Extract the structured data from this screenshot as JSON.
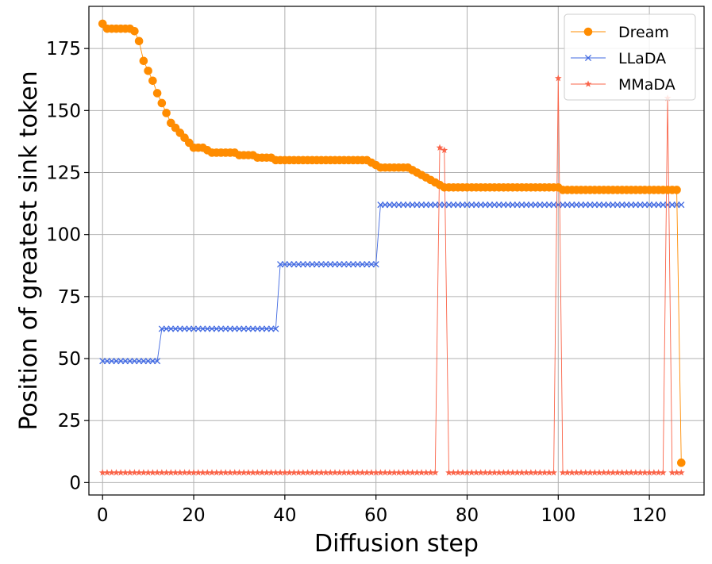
{
  "chart_data": {
    "type": "line",
    "title": "",
    "xlabel": "Diffusion step",
    "ylabel": "Position of greatest sink token",
    "xlim": [
      -3,
      132
    ],
    "ylim": [
      -5,
      192
    ],
    "xticks": [
      0,
      20,
      40,
      60,
      80,
      100,
      120
    ],
    "yticks": [
      0,
      25,
      50,
      75,
      100,
      125,
      150,
      175
    ],
    "grid": true,
    "legend_position": "top-right",
    "series": [
      {
        "name": "Dream",
        "color": "#ff8c00",
        "marker": "circle",
        "segments": [
          {
            "from": 0,
            "to": 0,
            "value": 185
          },
          {
            "from": 1,
            "to": 6,
            "value": 183
          },
          {
            "from": 7,
            "to": 7,
            "value": 182
          },
          {
            "from": 8,
            "to": 8,
            "value": 178
          },
          {
            "from": 9,
            "to": 9,
            "value": 170
          },
          {
            "from": 10,
            "to": 10,
            "value": 166
          },
          {
            "from": 11,
            "to": 11,
            "value": 162
          },
          {
            "from": 12,
            "to": 12,
            "value": 157
          },
          {
            "from": 13,
            "to": 13,
            "value": 153
          },
          {
            "from": 14,
            "to": 14,
            "value": 149
          },
          {
            "from": 15,
            "to": 15,
            "value": 145
          },
          {
            "from": 16,
            "to": 16,
            "value": 143
          },
          {
            "from": 17,
            "to": 17,
            "value": 141
          },
          {
            "from": 18,
            "to": 18,
            "value": 139
          },
          {
            "from": 19,
            "to": 19,
            "value": 137
          },
          {
            "from": 20,
            "to": 22,
            "value": 135
          },
          {
            "from": 23,
            "to": 23,
            "value": 134
          },
          {
            "from": 24,
            "to": 29,
            "value": 133
          },
          {
            "from": 30,
            "to": 33,
            "value": 132
          },
          {
            "from": 34,
            "to": 37,
            "value": 131
          },
          {
            "from": 38,
            "to": 58,
            "value": 130
          },
          {
            "from": 59,
            "to": 59,
            "value": 129
          },
          {
            "from": 60,
            "to": 60,
            "value": 128
          },
          {
            "from": 61,
            "to": 67,
            "value": 127
          },
          {
            "from": 68,
            "to": 68,
            "value": 126
          },
          {
            "from": 69,
            "to": 69,
            "value": 125
          },
          {
            "from": 70,
            "to": 70,
            "value": 124
          },
          {
            "from": 71,
            "to": 71,
            "value": 123
          },
          {
            "from": 72,
            "to": 72,
            "value": 122
          },
          {
            "from": 73,
            "to": 73,
            "value": 121
          },
          {
            "from": 74,
            "to": 74,
            "value": 120
          },
          {
            "from": 75,
            "to": 100,
            "value": 119
          },
          {
            "from": 101,
            "to": 126,
            "value": 118
          },
          {
            "from": 127,
            "to": 127,
            "value": 8
          }
        ]
      },
      {
        "name": "LLaDA",
        "color": "#4169e1",
        "marker": "x",
        "segments": [
          {
            "from": 0,
            "to": 12,
            "value": 49
          },
          {
            "from": 13,
            "to": 38,
            "value": 62
          },
          {
            "from": 39,
            "to": 60,
            "value": 88
          },
          {
            "from": 61,
            "to": 127,
            "value": 112
          }
        ]
      },
      {
        "name": "MMaDA",
        "color": "#fa6449",
        "marker": "star",
        "segments": [
          {
            "from": 0,
            "to": 73,
            "value": 4
          },
          {
            "from": 74,
            "to": 74,
            "value": 135
          },
          {
            "from": 75,
            "to": 75,
            "value": 134
          },
          {
            "from": 76,
            "to": 99,
            "value": 4
          },
          {
            "from": 100,
            "to": 100,
            "value": 163
          },
          {
            "from": 101,
            "to": 123,
            "value": 4
          },
          {
            "from": 124,
            "to": 124,
            "value": 155
          },
          {
            "from": 125,
            "to": 127,
            "value": 4
          }
        ]
      }
    ]
  }
}
